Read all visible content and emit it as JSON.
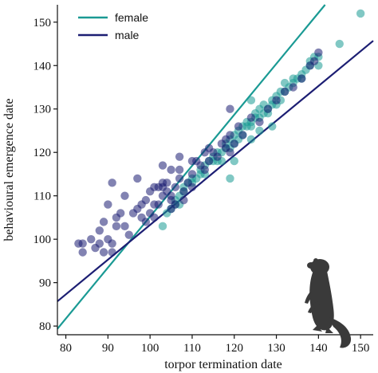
{
  "chart_data": {
    "type": "scatter",
    "xlabel": "torpor termination date",
    "ylabel": "behavioural emergence date",
    "xlim": [
      78,
      153
    ],
    "ylim": [
      78,
      154
    ],
    "x_ticks": [
      80,
      90,
      100,
      110,
      120,
      130,
      140,
      150
    ],
    "y_ticks": [
      80,
      90,
      100,
      110,
      120,
      130,
      140,
      150
    ],
    "grid": false,
    "legend_position": "top-left",
    "series": [
      {
        "name": "female",
        "color": "#1a9a94",
        "fit_line": {
          "intercept": -12.2,
          "slope": 1.174
        },
        "points": [
          [
            103,
            103
          ],
          [
            104,
            106
          ],
          [
            105,
            107
          ],
          [
            106,
            108
          ],
          [
            106,
            109
          ],
          [
            107,
            110
          ],
          [
            107,
            108
          ],
          [
            108,
            111
          ],
          [
            108,
            112
          ],
          [
            109,
            113
          ],
          [
            110,
            114
          ],
          [
            110,
            113
          ],
          [
            111,
            114
          ],
          [
            112,
            116
          ],
          [
            112,
            115
          ],
          [
            113,
            117
          ],
          [
            114,
            118
          ],
          [
            115,
            118
          ],
          [
            115,
            119
          ],
          [
            116,
            118
          ],
          [
            116,
            120
          ],
          [
            117,
            120
          ],
          [
            118,
            121
          ],
          [
            118,
            122
          ],
          [
            119,
            121
          ],
          [
            119,
            123
          ],
          [
            120,
            122
          ],
          [
            120,
            124
          ],
          [
            121,
            123
          ],
          [
            121,
            125
          ],
          [
            122,
            124
          ],
          [
            122,
            126
          ],
          [
            123,
            126
          ],
          [
            123,
            127
          ],
          [
            124,
            127
          ],
          [
            124,
            126
          ],
          [
            125,
            128
          ],
          [
            125,
            129
          ],
          [
            126,
            128
          ],
          [
            126,
            130
          ],
          [
            127,
            129
          ],
          [
            127,
            131
          ],
          [
            128,
            130
          ],
          [
            128,
            129
          ],
          [
            129,
            131
          ],
          [
            129,
            132
          ],
          [
            130,
            131
          ],
          [
            130,
            133
          ],
          [
            131,
            132
          ],
          [
            131,
            134
          ],
          [
            132,
            134
          ],
          [
            133,
            135
          ],
          [
            134,
            136
          ],
          [
            134,
            137
          ],
          [
            135,
            137
          ],
          [
            136,
            138
          ],
          [
            137,
            139
          ],
          [
            138,
            140
          ],
          [
            138,
            141
          ],
          [
            139,
            142
          ],
          [
            140,
            140
          ],
          [
            145,
            145
          ],
          [
            150,
            152
          ],
          [
            124,
            132
          ],
          [
            126,
            125
          ],
          [
            132,
            136
          ],
          [
            136,
            137
          ],
          [
            140,
            142
          ],
          [
            129,
            126
          ],
          [
            120,
            118
          ],
          [
            119,
            114
          ],
          [
            117,
            118
          ],
          [
            113,
            115
          ],
          [
            124,
            123
          ]
        ]
      },
      {
        "name": "male",
        "color": "#1c1e73",
        "fit_line": {
          "intercept": 23.3,
          "slope": 0.8
        },
        "points": [
          [
            83,
            99
          ],
          [
            84,
            97
          ],
          [
            84,
            99
          ],
          [
            86,
            100
          ],
          [
            87,
            98
          ],
          [
            88,
            99
          ],
          [
            88,
            102
          ],
          [
            89,
            97
          ],
          [
            89,
            104
          ],
          [
            90,
            108
          ],
          [
            90,
            100
          ],
          [
            91,
            99
          ],
          [
            91,
            113
          ],
          [
            91,
            97
          ],
          [
            92,
            103
          ],
          [
            92,
            105
          ],
          [
            93,
            106
          ],
          [
            94,
            103
          ],
          [
            94,
            110
          ],
          [
            95,
            101
          ],
          [
            96,
            106
          ],
          [
            97,
            107
          ],
          [
            97,
            114
          ],
          [
            98,
            108
          ],
          [
            98,
            105
          ],
          [
            99,
            109
          ],
          [
            99,
            104
          ],
          [
            100,
            111
          ],
          [
            101,
            112
          ],
          [
            101,
            108
          ],
          [
            102,
            112
          ],
          [
            102,
            108
          ],
          [
            103,
            113
          ],
          [
            103,
            110
          ],
          [
            103,
            112
          ],
          [
            104,
            111
          ],
          [
            104,
            113
          ],
          [
            105,
            110
          ],
          [
            105,
            109
          ],
          [
            106,
            112
          ],
          [
            106,
            108
          ],
          [
            107,
            114
          ],
          [
            107,
            119
          ],
          [
            108,
            111
          ],
          [
            108,
            109
          ],
          [
            109,
            113
          ],
          [
            110,
            115
          ],
          [
            110,
            112
          ],
          [
            111,
            118
          ],
          [
            112,
            117
          ],
          [
            113,
            116
          ],
          [
            113,
            120
          ],
          [
            114,
            118
          ],
          [
            114,
            121
          ],
          [
            115,
            120
          ],
          [
            116,
            119
          ],
          [
            117,
            122
          ],
          [
            118,
            121
          ],
          [
            118,
            123
          ],
          [
            119,
            120
          ],
          [
            119,
            124
          ],
          [
            119,
            130
          ],
          [
            120,
            122
          ],
          [
            121,
            126
          ],
          [
            122,
            124
          ],
          [
            124,
            128
          ],
          [
            126,
            127
          ],
          [
            128,
            130
          ],
          [
            130,
            132
          ],
          [
            132,
            134
          ],
          [
            134,
            135
          ],
          [
            136,
            137
          ],
          [
            138,
            140
          ],
          [
            139,
            141
          ],
          [
            140,
            143
          ],
          [
            101,
            105
          ],
          [
            105,
            116
          ],
          [
            105,
            107
          ],
          [
            100,
            106
          ],
          [
            107,
            116
          ],
          [
            110,
            118
          ],
          [
            103,
            117
          ]
        ]
      }
    ]
  }
}
